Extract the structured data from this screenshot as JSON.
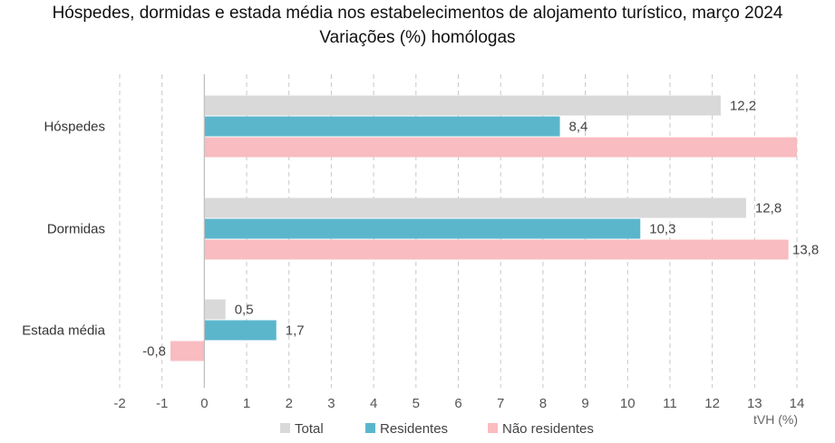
{
  "chart_data": {
    "type": "bar",
    "orientation": "horizontal",
    "title": "Hóspedes, dormidas e estada média nos estabelecimentos de alojamento turístico, março 2024",
    "subtitle": "Variações (%) homólogas",
    "categories": [
      "Hóspedes",
      "Dormidas",
      "Estada média"
    ],
    "series": [
      {
        "name": "Total",
        "color": "#d9d9d9",
        "values": [
          12.2,
          12.8,
          0.5
        ],
        "labels": [
          "12,2",
          "12,8",
          "0,5"
        ]
      },
      {
        "name": "Residentes",
        "color": "#5bb6cc",
        "values": [
          8.4,
          10.3,
          1.7
        ],
        "labels": [
          "8,4",
          "10,3",
          "1,7"
        ]
      },
      {
        "name": "Não residentes",
        "color": "#f9bcc0",
        "values": [
          14.0,
          13.8,
          -0.8
        ],
        "labels": [
          "",
          "13,8",
          "-0,8"
        ]
      }
    ],
    "xlim": [
      -2,
      14
    ],
    "xticks": [
      "-2",
      "-1",
      "0",
      "1",
      "2",
      "3",
      "4",
      "5",
      "6",
      "7",
      "8",
      "9",
      "10",
      "11",
      "12",
      "13",
      "14"
    ],
    "xlabel": "tVH (%)",
    "grid": "vertical-dashed",
    "legend": "bottom"
  }
}
